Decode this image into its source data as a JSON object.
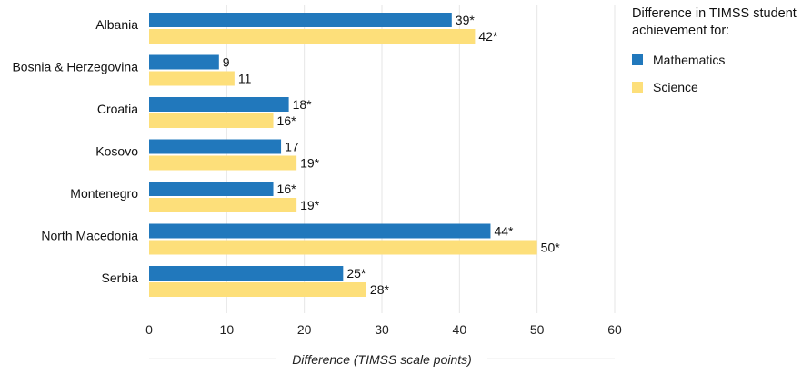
{
  "chart_data": {
    "type": "bar",
    "orientation": "horizontal",
    "categories": [
      "Albania",
      "Bosnia & Herzegovina",
      "Croatia",
      "Kosovo",
      "Montenegro",
      "North Macedonia",
      "Serbia"
    ],
    "series": [
      {
        "name": "Mathematics",
        "color": "#2178bc",
        "values": [
          39,
          9,
          18,
          17,
          16,
          44,
          25
        ],
        "labels": [
          "39*",
          "9",
          "18*",
          "17",
          "16*",
          "44*",
          "25*"
        ]
      },
      {
        "name": "Science",
        "color": "#fddf7a",
        "values": [
          42,
          11,
          16,
          19,
          19,
          50,
          28
        ],
        "labels": [
          "42*",
          "11",
          "16*",
          "19*",
          "19*",
          "50*",
          "28*"
        ]
      }
    ],
    "xlabel": "Difference (TIMSS scale points)",
    "xlim": [
      0,
      60
    ],
    "xticks": [
      0,
      10,
      20,
      30,
      40,
      50,
      60
    ],
    "grid": "vertical",
    "legend": {
      "title": "Difference in TIMSS student achievement for:",
      "position": "top-right"
    }
  }
}
